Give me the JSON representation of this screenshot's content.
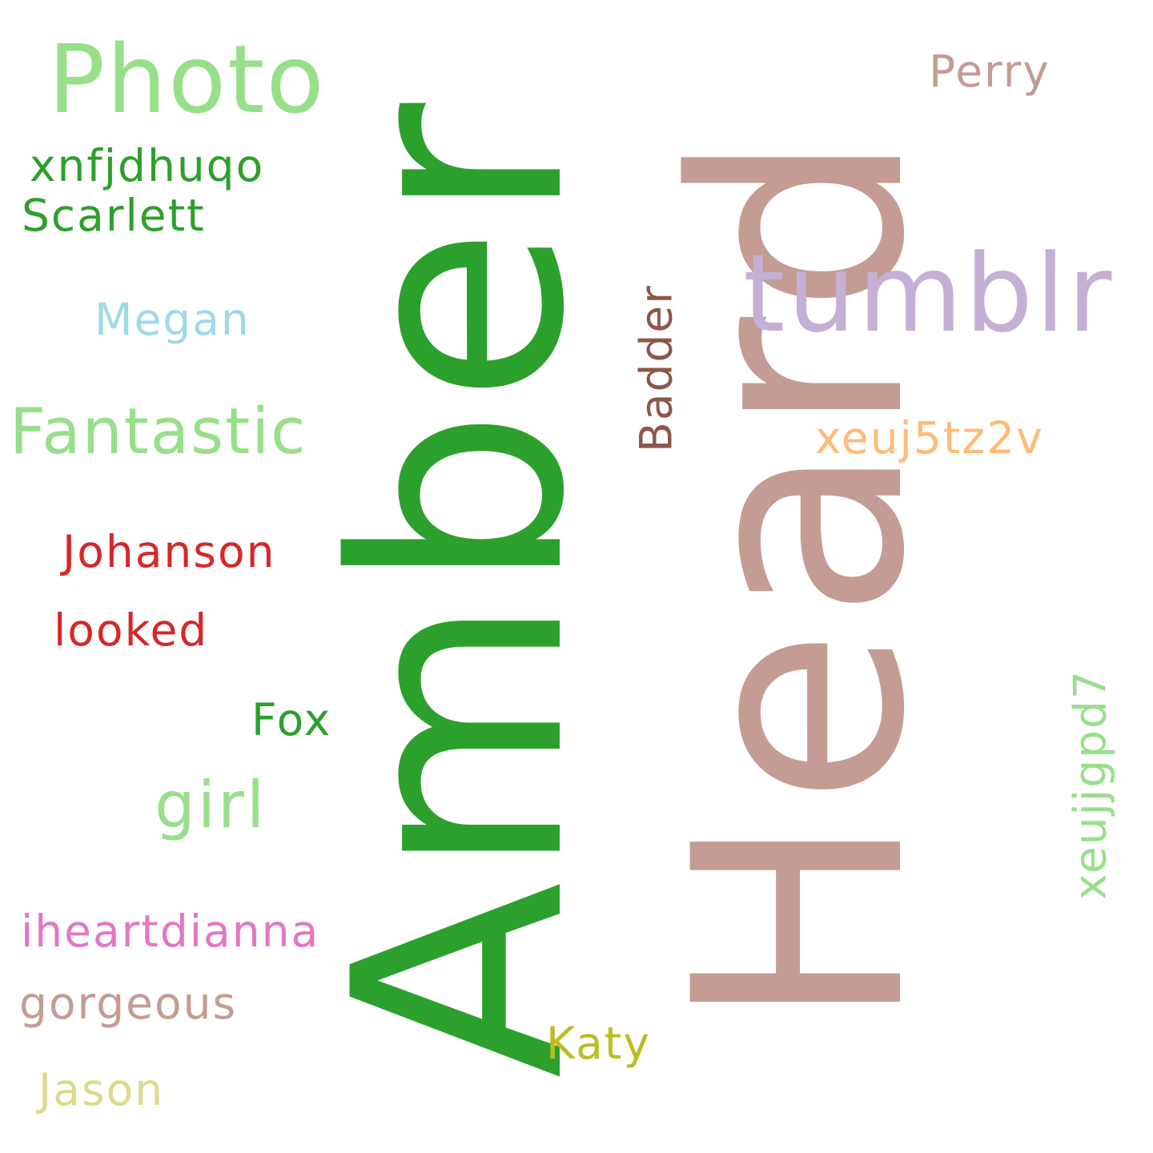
{
  "background_color": "#ffffff",
  "words": {
    "amber": {
      "text": "Amber",
      "color": "#2ca02c",
      "orientation": "vertical"
    },
    "heard": {
      "text": "Heard",
      "color": "#c49c94",
      "orientation": "vertical"
    },
    "tumblr": {
      "text": "tumblr",
      "color": "#c5b0d5",
      "orientation": "horizontal"
    },
    "photo": {
      "text": "Photo",
      "color": "#98df8a",
      "orientation": "horizontal"
    },
    "fantastic": {
      "text": "Fantastic",
      "color": "#98df8a",
      "orientation": "horizontal"
    },
    "girl": {
      "text": "girl",
      "color": "#98df8a",
      "orientation": "horizontal"
    },
    "xnfjdhuqo": {
      "text": "xnfjdhuqo",
      "color": "#2ca02c",
      "orientation": "horizontal"
    },
    "scarlett": {
      "text": "Scarlett",
      "color": "#2ca02c",
      "orientation": "horizontal"
    },
    "megan": {
      "text": "Megan",
      "color": "#9edae5",
      "orientation": "horizontal"
    },
    "johanson": {
      "text": "Johanson",
      "color": "#d62728",
      "orientation": "horizontal"
    },
    "looked": {
      "text": "looked",
      "color": "#d62728",
      "orientation": "horizontal"
    },
    "fox": {
      "text": "Fox",
      "color": "#2ca02c",
      "orientation": "horizontal"
    },
    "iheartdianna": {
      "text": "iheartdianna",
      "color": "#e377c2",
      "orientation": "horizontal"
    },
    "gorgeous": {
      "text": "gorgeous",
      "color": "#c49c94",
      "orientation": "horizontal"
    },
    "jason": {
      "text": "Jason",
      "color": "#dbdb8d",
      "orientation": "horizontal"
    },
    "katy": {
      "text": "Katy",
      "color": "#bcbd22",
      "orientation": "horizontal"
    },
    "perry": {
      "text": "Perry",
      "color": "#c49c94",
      "orientation": "horizontal"
    },
    "xeuj5tz2v": {
      "text": "xeuj5tz2v",
      "color": "#ffbb78",
      "orientation": "horizontal"
    },
    "badder": {
      "text": "Badder",
      "color": "#8c564b",
      "orientation": "vertical"
    },
    "xeujjgpd7": {
      "text": "xeujjgpd7",
      "color": "#98df8a",
      "orientation": "vertical"
    }
  }
}
